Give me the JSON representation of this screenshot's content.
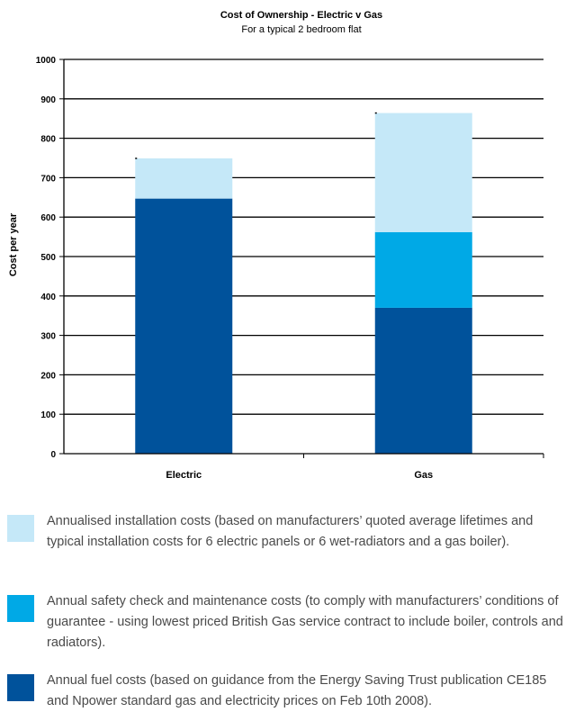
{
  "colors": {
    "installation": "#c5e8f8",
    "safety": "#00a9e6",
    "fuel": "#00529b",
    "gridline": "#000000"
  },
  "chart_data": {
    "type": "bar",
    "stacked": true,
    "title": "Cost of Ownership - Electric v Gas",
    "subtitle": "For a typical 2 bedroom flat",
    "xlabel": "",
    "ylabel": "Cost per year",
    "categories": [
      "Electric",
      "Gas"
    ],
    "ylim": [
      0,
      1000
    ],
    "yticks": [
      0,
      100,
      200,
      300,
      400,
      500,
      600,
      700,
      800,
      900,
      1000
    ],
    "grid": true,
    "series": [
      {
        "key": "fuel",
        "values": [
          647,
          370
        ]
      },
      {
        "key": "safety",
        "values": [
          0,
          192
        ]
      },
      {
        "key": "installation",
        "values": [
          102,
          302
        ]
      }
    ]
  },
  "legend": [
    {
      "key": "installation",
      "text": "Annualised installation costs (based on manufacturers’ quoted average lifetimes and typical installation costs for 6 electric panels or 6 wet-radiators and a gas boiler)."
    },
    {
      "key": "safety",
      "text": "Annual safety check and maintenance costs (to comply with manufacturers’ conditions of guarantee - using lowest priced British Gas service contract to include boiler, controls and radiators)."
    },
    {
      "key": "fuel",
      "text": "Annual fuel costs (based on guidance from the Energy Saving Trust publication CE185 and Npower standard gas and electricity prices on Feb 10th 2008)."
    }
  ]
}
